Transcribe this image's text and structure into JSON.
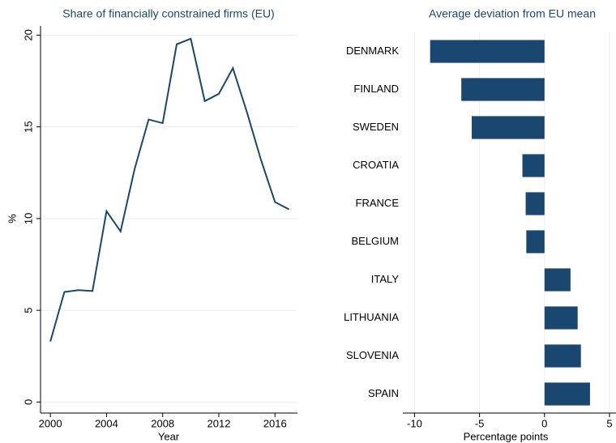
{
  "chart_data": [
    {
      "type": "line",
      "title": "Share of financially constrained firms (EU)",
      "x": [
        2000,
        2001,
        2002,
        2003,
        2004,
        2005,
        2006,
        2007,
        2008,
        2009,
        2010,
        2011,
        2012,
        2013,
        2014,
        2015,
        2016,
        2017
      ],
      "values": [
        3.3,
        6.0,
        6.1,
        6.05,
        10.4,
        9.3,
        12.7,
        15.4,
        15.2,
        19.5,
        19.8,
        16.4,
        16.8,
        18.2,
        15.8,
        13.2,
        10.9,
        10.5
      ],
      "color": "#1a476f",
      "xlabel": "Year",
      "ylabel": "%",
      "xlim": [
        1999.3,
        2017.6
      ],
      "xticks": [
        2000,
        2004,
        2008,
        2012,
        2016
      ],
      "ylim": [
        -0.6,
        20.5
      ],
      "yticks": [
        0,
        5,
        10,
        15,
        20
      ],
      "grid": true
    },
    {
      "type": "bar",
      "orientation": "horizontal",
      "title": "Average deviation from EU mean",
      "categories": [
        "DENMARK",
        "FINLAND",
        "SWEDEN",
        "CROATIA",
        "FRANCE",
        "BELGIUM",
        "ITALY",
        "LITHUANIA",
        "SLOVENIA",
        "SPAIN"
      ],
      "values": [
        -8.8,
        -6.4,
        -5.6,
        -1.7,
        -1.45,
        -1.4,
        2.0,
        2.55,
        2.8,
        3.5
      ],
      "color": "#1a476f",
      "xlabel": "Percentage points",
      "xlim": [
        -10.9,
        5.5
      ],
      "xticks": [
        -10,
        -5,
        0,
        5
      ],
      "grid": true
    }
  ]
}
